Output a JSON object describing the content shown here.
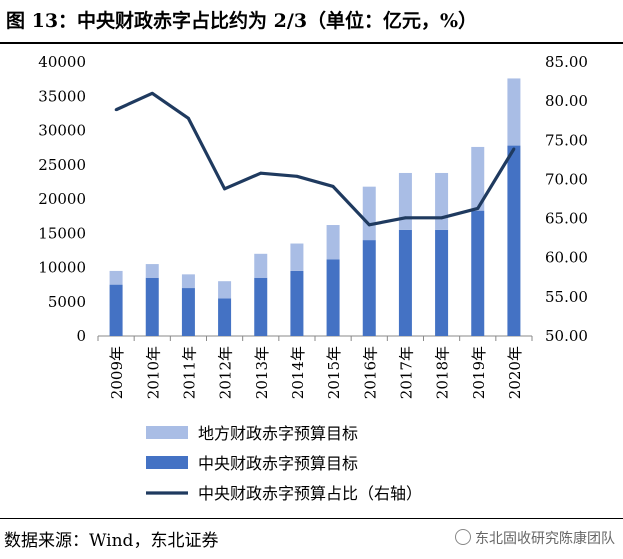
{
  "title": "图 13：中央财政赤字占比约为 2/3（单位：亿元，%）",
  "source": "数据来源：Wind，东北证券",
  "watermark": "东北固收研究陈康团队",
  "chart_data": {
    "type": "bar",
    "categories": [
      "2009年",
      "2010年",
      "2011年",
      "2012年",
      "2013年",
      "2014年",
      "2015年",
      "2016年",
      "2017年",
      "2018年",
      "2019年",
      "2020年"
    ],
    "series": [
      {
        "name": "中央财政赤字预算目标",
        "type": "bar",
        "color": "#4472C4",
        "values": [
          7500,
          8500,
          7000,
          5500,
          8500,
          9500,
          11200,
          14000,
          15500,
          15500,
          18300,
          27800
        ]
      },
      {
        "name": "地方财政赤字预算目标",
        "type": "bar",
        "color": "#A9BDE5",
        "values": [
          2000,
          2000,
          2000,
          2500,
          3500,
          4000,
          5000,
          7800,
          8300,
          8300,
          9300,
          9800
        ]
      },
      {
        "name": "中央财政赤字预算占比（右轴）",
        "type": "line",
        "axis": "right",
        "color": "#1F3A5F",
        "values": [
          78.9,
          81.0,
          77.8,
          68.8,
          70.8,
          70.4,
          69.1,
          64.2,
          65.1,
          65.1,
          66.3,
          73.9
        ]
      }
    ],
    "left_axis": {
      "ylim": [
        0,
        40000
      ],
      "ticks": [
        "40000",
        "35000",
        "30000",
        "25000",
        "20000",
        "15000",
        "10000",
        "5000",
        "0"
      ]
    },
    "right_axis": {
      "ylim": [
        50,
        85
      ],
      "ticks": [
        "85.00",
        "80.00",
        "75.00",
        "70.00",
        "65.00",
        "60.00",
        "55.00",
        "50.00"
      ]
    },
    "legend": [
      "地方财政赤字预算目标",
      "中央财政赤字预算目标",
      "中央财政赤字预算占比（右轴）"
    ],
    "grid": false
  }
}
